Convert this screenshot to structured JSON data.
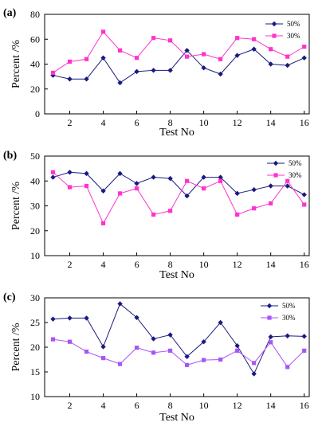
{
  "chart_data": [
    {
      "type": "line",
      "panel_label": "(a)",
      "xlabel": "Test No",
      "ylabel": "Percent /%",
      "xlim": [
        0.5,
        16.3
      ],
      "ylim": [
        0,
        80
      ],
      "xticks": [
        2,
        4,
        6,
        8,
        10,
        12,
        14,
        16
      ],
      "yticks": [
        0,
        20,
        40,
        60,
        80
      ],
      "legend": "top-right",
      "x": [
        1,
        2,
        3,
        4,
        5,
        6,
        7,
        8,
        9,
        10,
        11,
        12,
        13,
        14,
        15,
        16
      ],
      "series": [
        {
          "name": "50%",
          "color": "#1a1a80",
          "marker": "diamond",
          "values": [
            31,
            28,
            28,
            45,
            25,
            34,
            35,
            35,
            51,
            37,
            32,
            47,
            52,
            40,
            39,
            45
          ]
        },
        {
          "name": "30%",
          "color": "#ff33cc",
          "marker": "square",
          "values": [
            33,
            42,
            44,
            66,
            51,
            45,
            61,
            59,
            46,
            48,
            44,
            61,
            60,
            52,
            46,
            54
          ]
        }
      ]
    },
    {
      "type": "line",
      "panel_label": "(b)",
      "xlabel": "Test No",
      "ylabel": "Percent /%",
      "xlim": [
        0.5,
        16.3
      ],
      "ylim": [
        10,
        50
      ],
      "xticks": [
        2,
        4,
        6,
        8,
        10,
        12,
        14,
        16
      ],
      "yticks": [
        10,
        20,
        30,
        40,
        50
      ],
      "legend": "top-right",
      "x": [
        1,
        2,
        3,
        4,
        5,
        6,
        7,
        8,
        9,
        10,
        11,
        12,
        13,
        14,
        15,
        16
      ],
      "series": [
        {
          "name": "50%",
          "color": "#1a1a80",
          "marker": "diamond",
          "values": [
            41.5,
            43.5,
            43,
            36,
            43,
            39,
            41.5,
            41,
            34,
            41.5,
            41.5,
            35,
            36.5,
            38,
            38,
            34.5
          ]
        },
        {
          "name": "30%",
          "color": "#ff33cc",
          "marker": "square",
          "values": [
            43.5,
            37.5,
            38,
            23,
            35,
            37,
            26.5,
            28,
            40,
            37,
            40,
            26.5,
            29,
            31,
            40,
            30.5
          ]
        }
      ]
    },
    {
      "type": "line",
      "panel_label": "(c)",
      "xlabel": "Test No",
      "ylabel": "Percent /%",
      "xlim": [
        0.5,
        16.3
      ],
      "ylim": [
        10,
        30
      ],
      "xticks": [
        2,
        4,
        6,
        8,
        10,
        12,
        14,
        16
      ],
      "yticks": [
        10,
        15,
        20,
        25,
        30
      ],
      "legend": "top-right",
      "x": [
        1,
        2,
        3,
        4,
        5,
        6,
        7,
        8,
        9,
        10,
        11,
        12,
        13,
        14,
        15,
        16
      ],
      "series": [
        {
          "name": "50%",
          "color": "#1a1a80",
          "marker": "diamond",
          "values": [
            25.7,
            25.9,
            25.9,
            20.1,
            28.8,
            26.0,
            21.7,
            22.5,
            18.1,
            21.1,
            25.0,
            20.3,
            14.6,
            22.1,
            22.3,
            22.2
          ]
        },
        {
          "name": "30%",
          "color": "#a855f7",
          "marker": "square",
          "values": [
            21.6,
            21.1,
            19.1,
            17.8,
            16.6,
            19.9,
            18.9,
            19.3,
            16.4,
            17.4,
            17.5,
            19.3,
            16.8,
            21.0,
            16.0,
            19.3
          ]
        }
      ]
    }
  ]
}
